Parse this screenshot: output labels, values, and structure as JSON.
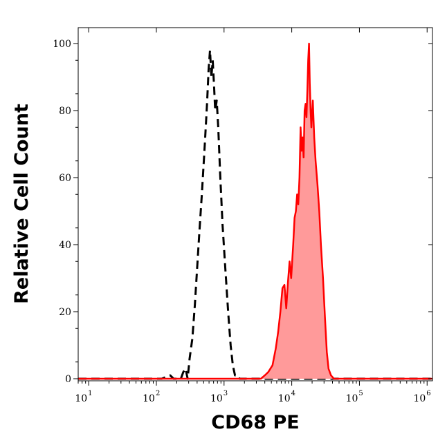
{
  "chart_data": {
    "type": "area",
    "xlabel": "CD68 PE",
    "ylabel": "Relative Cell Count",
    "x_scale": "log",
    "xlim": [
      7,
      1200000
    ],
    "ylim": [
      0,
      100
    ],
    "grid": false,
    "x_ticks": [
      {
        "base": "10",
        "exp": "1",
        "value": 10
      },
      {
        "base": "10",
        "exp": "2",
        "value": 100
      },
      {
        "base": "10",
        "exp": "3",
        "value": 1000
      },
      {
        "base": "10",
        "exp": "4",
        "value": 10000
      },
      {
        "base": "10",
        "exp": "5",
        "value": 100000
      },
      {
        "base": "10",
        "exp": "6",
        "value": 1000000
      }
    ],
    "y_ticks": [
      "0",
      "20",
      "40",
      "60",
      "80",
      "100"
    ],
    "y_tick_values": [
      0,
      20,
      40,
      60,
      80,
      100
    ],
    "series": [
      {
        "style": "dashed",
        "color": "#000000",
        "fill": "none",
        "points": [
          [
            7,
            0
          ],
          [
            120,
            0
          ],
          [
            160,
            1
          ],
          [
            180,
            0
          ],
          [
            230,
            0
          ],
          [
            250,
            2
          ],
          [
            270,
            3
          ],
          [
            290,
            0
          ],
          [
            310,
            6
          ],
          [
            340,
            12
          ],
          [
            370,
            22
          ],
          [
            400,
            33
          ],
          [
            430,
            43
          ],
          [
            470,
            55
          ],
          [
            520,
            70
          ],
          [
            560,
            82
          ],
          [
            590,
            92
          ],
          [
            620,
            98
          ],
          [
            650,
            90
          ],
          [
            680,
            95
          ],
          [
            710,
            88
          ],
          [
            740,
            80
          ],
          [
            780,
            83
          ],
          [
            820,
            75
          ],
          [
            880,
            60
          ],
          [
            950,
            46
          ],
          [
            1050,
            32
          ],
          [
            1150,
            20
          ],
          [
            1250,
            10
          ],
          [
            1350,
            4
          ],
          [
            1450,
            1
          ],
          [
            1600,
            1
          ],
          [
            1700,
            0
          ],
          [
            2500,
            0
          ],
          [
            1200000,
            0
          ]
        ]
      },
      {
        "style": "solid",
        "color": "#ff0000",
        "fill": "#ff9a9a",
        "points": [
          [
            7,
            0
          ],
          [
            3500,
            0
          ],
          [
            4000,
            1
          ],
          [
            4500,
            2
          ],
          [
            5200,
            4
          ],
          [
            5800,
            9
          ],
          [
            6300,
            14
          ],
          [
            6800,
            20
          ],
          [
            7300,
            27
          ],
          [
            7800,
            28
          ],
          [
            8300,
            21
          ],
          [
            8800,
            29
          ],
          [
            9300,
            35
          ],
          [
            9800,
            30
          ],
          [
            10500,
            40
          ],
          [
            11000,
            48
          ],
          [
            11500,
            50
          ],
          [
            12000,
            55
          ],
          [
            12500,
            52
          ],
          [
            13000,
            60
          ],
          [
            13500,
            75
          ],
          [
            14000,
            68
          ],
          [
            14500,
            72
          ],
          [
            15000,
            66
          ],
          [
            15500,
            80
          ],
          [
            16000,
            82
          ],
          [
            16500,
            78
          ],
          [
            17000,
            86
          ],
          [
            17500,
            95
          ],
          [
            18000,
            100
          ],
          [
            18500,
            88
          ],
          [
            19000,
            80
          ],
          [
            19500,
            75
          ],
          [
            20500,
            83
          ],
          [
            21500,
            72
          ],
          [
            22500,
            65
          ],
          [
            24000,
            58
          ],
          [
            25500,
            50
          ],
          [
            27000,
            40
          ],
          [
            29000,
            30
          ],
          [
            31000,
            18
          ],
          [
            33000,
            8
          ],
          [
            35000,
            3
          ],
          [
            38000,
            1
          ],
          [
            42000,
            0
          ],
          [
            1200000,
            0
          ]
        ]
      }
    ]
  }
}
